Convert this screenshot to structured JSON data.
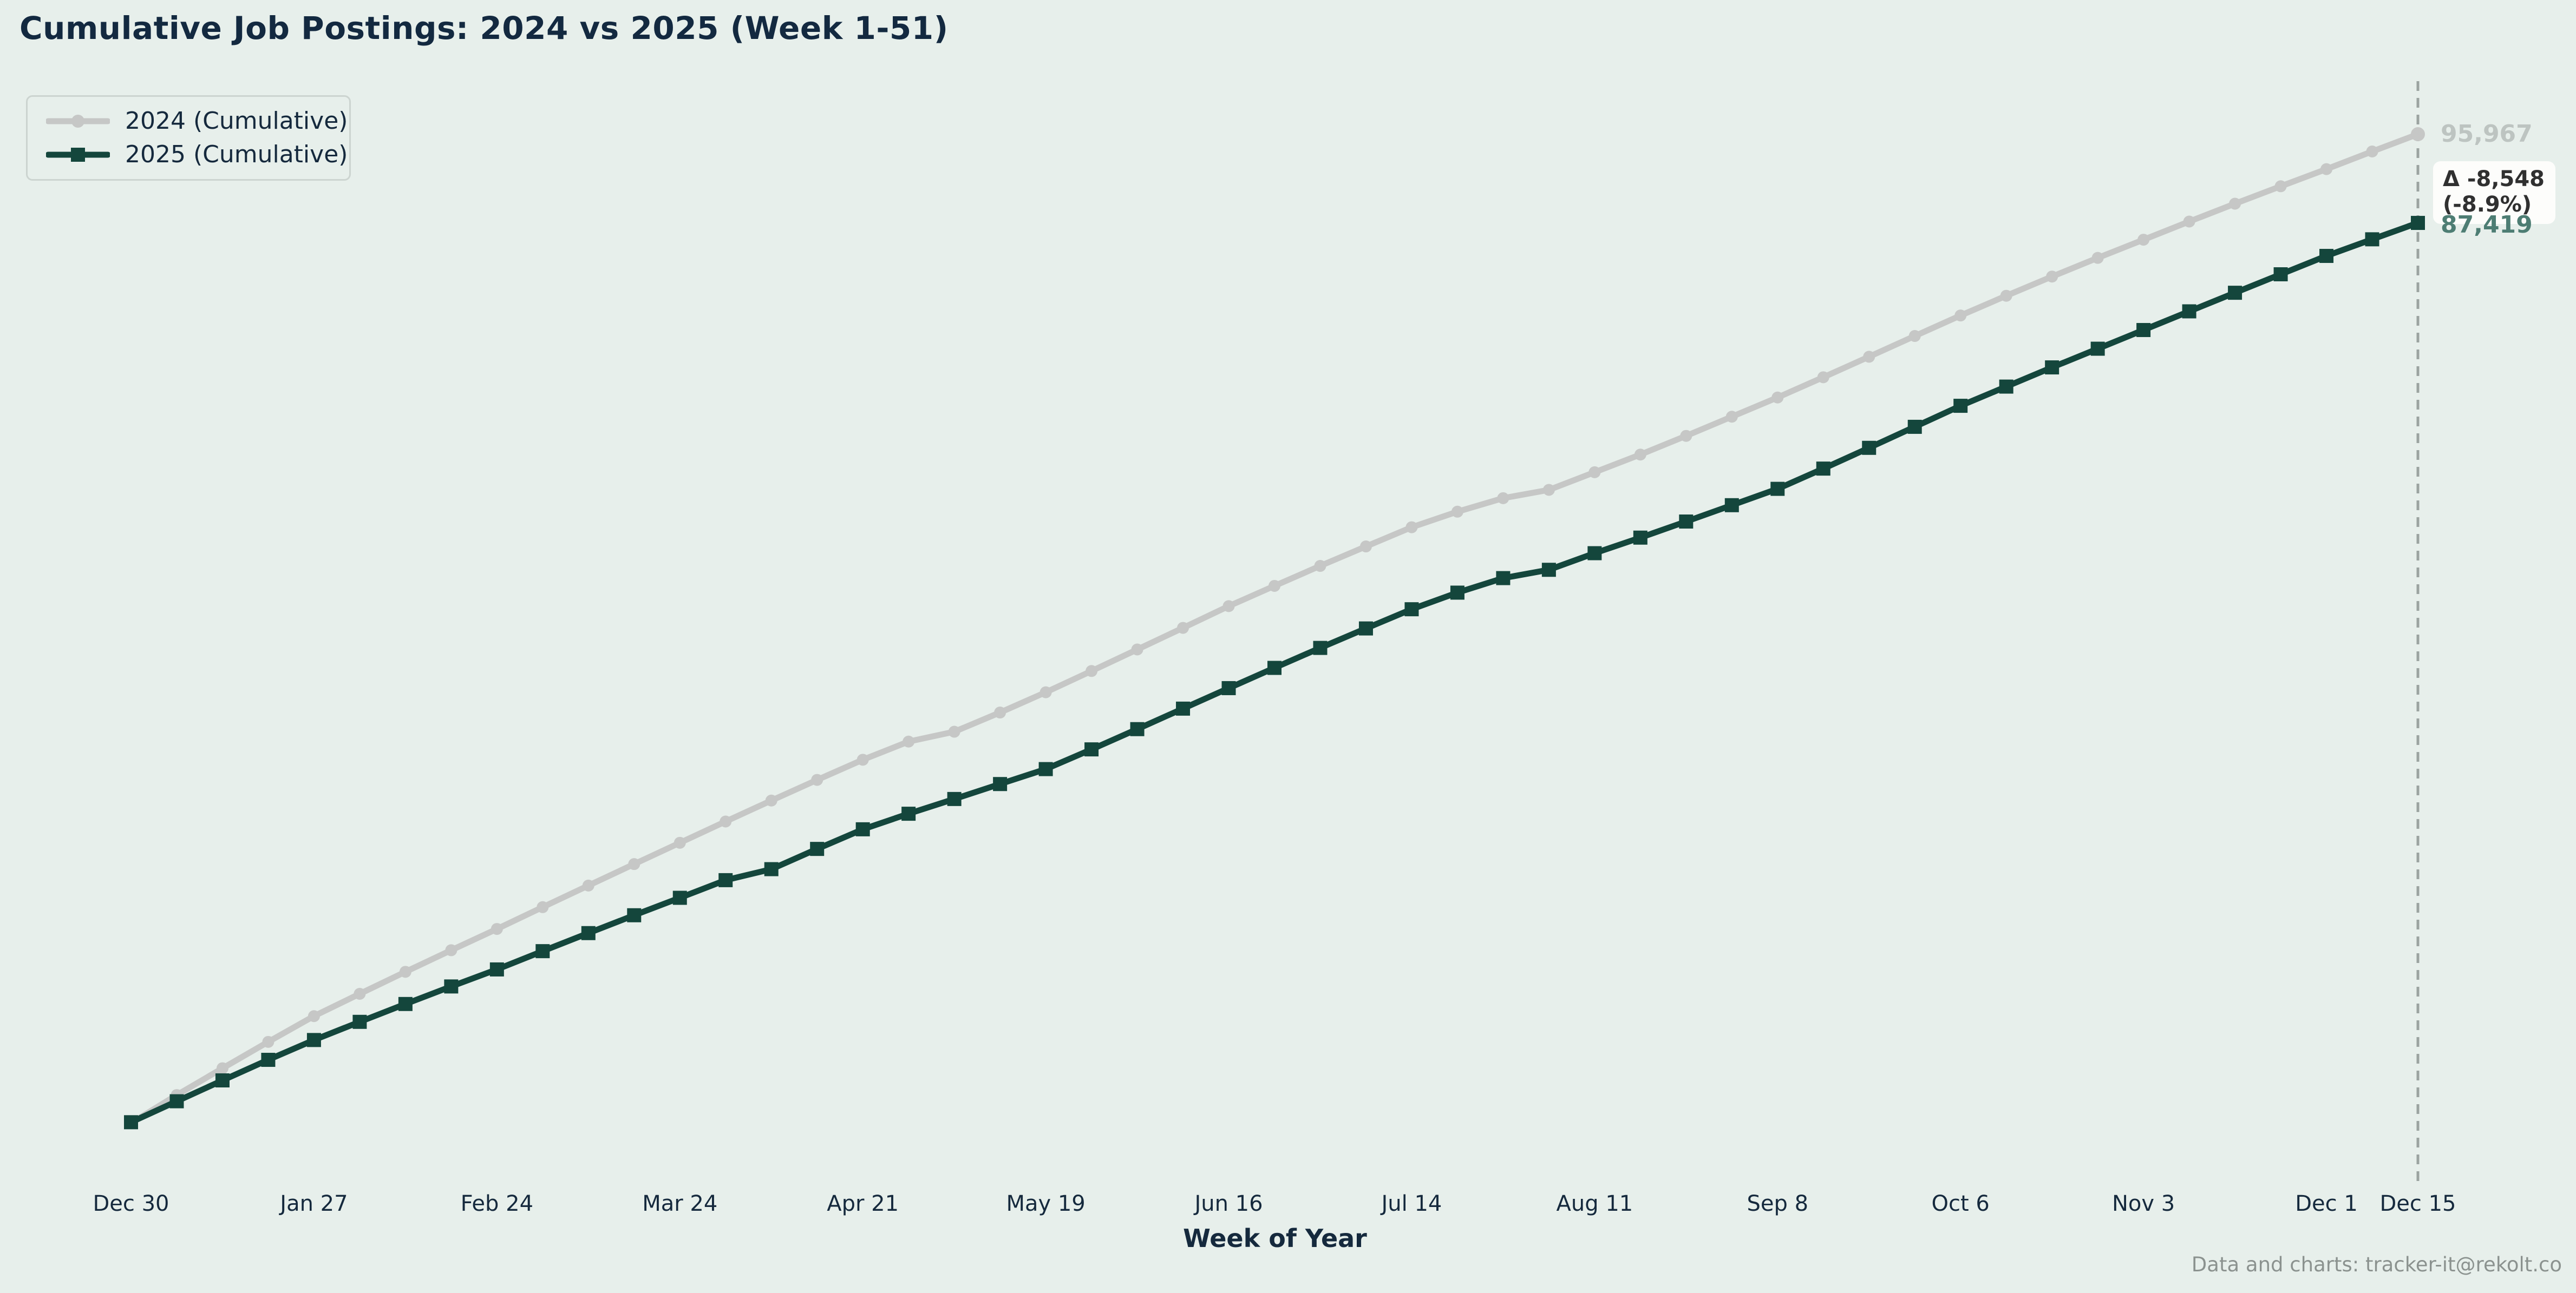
{
  "title": "Cumulative Job Postings: 2024 vs 2025 (Week 1-51)",
  "legend": {
    "items": [
      {
        "label": "2024 (Cumulative)",
        "color": "#c6c7c6",
        "marker": "circle"
      },
      {
        "label": "2025 (Cumulative)",
        "color": "#14463c",
        "marker": "square"
      }
    ]
  },
  "annotations": {
    "end_label_2024": "95,967",
    "end_label_2025": "87,419",
    "delta_line1": "Δ -8,548",
    "delta_line2": "(-8.9%)"
  },
  "x_axis": {
    "title": "Week of Year"
  },
  "footer": "Data and charts: tracker-it@rekolt.co",
  "colors": {
    "background": "#e7efeb",
    "ink": "#132940",
    "line_2024": "#c6c7c6",
    "line_2025": "#14463c",
    "end_label_2024": "#bdc4c1",
    "end_label_2025": "#4d7d73",
    "dashed_guide": "#9ba3a0",
    "delta_text": "#303030",
    "delta_bg": "#fdfdfb",
    "footer_text": "#8b928f"
  },
  "chart_data": {
    "type": "line",
    "title": "Cumulative Job Postings: 2024 vs 2025 (Week 1-51)",
    "xlabel": "Week of Year",
    "ylabel": "",
    "x_unit": "week_of_year",
    "weeks": 51,
    "x_tick_labels": [
      "Dec 30",
      "Jan 27",
      "Feb 24",
      "Mar 24",
      "Apr 21",
      "May 19",
      "Jun 16",
      "Jul 14",
      "Aug 11",
      "Sep 8",
      "Oct 6",
      "Nov 3",
      "Dec 1",
      "Dec 15"
    ],
    "x_tick_weeks": [
      1,
      5,
      9,
      13,
      17,
      21,
      25,
      29,
      33,
      37,
      41,
      45,
      49,
      51
    ],
    "grid": false,
    "y_axis_visible": false,
    "legend_position": "upper left",
    "end_guide": {
      "week": 51,
      "style": "dashed"
    },
    "series": [
      {
        "name": "2024 (Cumulative)",
        "color": "#c6c7c6",
        "marker": "circle",
        "final_value": 95967,
        "values": [
          700,
          3400,
          5980,
          8520,
          11000,
          13150,
          15270,
          17350,
          19400,
          21500,
          23580,
          25650,
          27700,
          29750,
          31770,
          33760,
          35700,
          37450,
          38400,
          40250,
          42200,
          44250,
          46325,
          48405,
          50500,
          52450,
          54375,
          56250,
          58100,
          59600,
          60900,
          61700,
          63400,
          65100,
          66900,
          68750,
          70600,
          72550,
          74525,
          76525,
          78500,
          80400,
          82250,
          84050,
          85800,
          87550,
          89270,
          90950,
          92600,
          94300,
          95967
        ]
      },
      {
        "name": "2025 (Cumulative)",
        "color": "#14463c",
        "marker": "square",
        "final_value": 87419,
        "values": [
          780,
          2800,
          4810,
          6790,
          8700,
          10450,
          12170,
          13860,
          15500,
          17260,
          19000,
          20720,
          22400,
          24100,
          25160,
          27110,
          29000,
          30500,
          31920,
          33360,
          34800,
          36700,
          38650,
          40625,
          42600,
          44550,
          46475,
          48350,
          50200,
          51800,
          53200,
          54000,
          55600,
          57100,
          58650,
          60225,
          61800,
          63750,
          65750,
          67775,
          69800,
          71650,
          73500,
          75300,
          77100,
          78900,
          80690,
          82470,
          84240,
          85840,
          87419
        ]
      }
    ],
    "delta": {
      "absolute": -8548,
      "percent": -8.9
    }
  }
}
